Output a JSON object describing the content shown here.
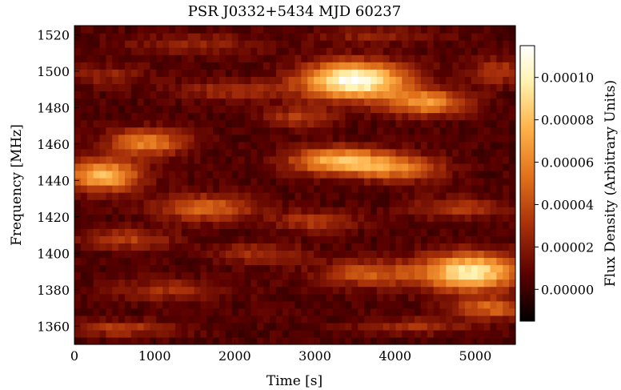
{
  "chart_data": {
    "type": "heatmap",
    "title": "PSR J0332+5434 MJD 60237",
    "xlabel": "Time [s]",
    "ylabel": "Frequency [MHz]",
    "xlim": [
      0,
      5500
    ],
    "ylim": [
      1350,
      1525
    ],
    "xticks": [
      0,
      1000,
      2000,
      3000,
      4000,
      5000
    ],
    "yticks": [
      1360,
      1380,
      1400,
      1420,
      1440,
      1460,
      1480,
      1500,
      1520
    ],
    "colorbar": {
      "label": "Flux Density (Arbitrary Units)",
      "range": [
        -1.5e-05,
        0.000115
      ],
      "ticks": [
        0.0,
        2e-05,
        4e-05,
        6e-05,
        8e-05,
        0.0001
      ],
      "tick_labels": [
        "0.00000",
        "0.00002",
        "0.00004",
        "0.00006",
        "0.00008",
        "0.00010"
      ],
      "colormap": "afmhot",
      "colors": [
        "#000000",
        "#5a0000",
        "#a8300a",
        "#e06f1a",
        "#ffb24a",
        "#fff3b0",
        "#ffffff"
      ]
    },
    "grid": false,
    "scintles": [
      {
        "t": 3500,
        "f": 1495,
        "width_s": 450,
        "height_mhz": 7,
        "flux": 0.00011
      },
      {
        "t": 4950,
        "f": 1390,
        "width_s": 420,
        "height_mhz": 7,
        "flux": 9.5e-05
      },
      {
        "t": 3300,
        "f": 1451,
        "width_s": 420,
        "height_mhz": 5,
        "flux": 7.5e-05
      },
      {
        "t": 350,
        "f": 1443,
        "width_s": 330,
        "height_mhz": 6,
        "flux": 7.5e-05
      },
      {
        "t": 900,
        "f": 1461,
        "width_s": 350,
        "height_mhz": 5,
        "flux": 5.5e-05
      },
      {
        "t": 4050,
        "f": 1447,
        "width_s": 380,
        "height_mhz": 5,
        "flux": 5e-05
      },
      {
        "t": 1650,
        "f": 1425,
        "width_s": 420,
        "height_mhz": 5,
        "flux": 4.5e-05
      },
      {
        "t": 4400,
        "f": 1483,
        "width_s": 350,
        "height_mhz": 5,
        "flux": 6e-05
      },
      {
        "t": 3700,
        "f": 1389,
        "width_s": 450,
        "height_mhz": 5,
        "flux": 4e-05
      },
      {
        "t": 650,
        "f": 1408,
        "width_s": 400,
        "height_mhz": 4,
        "flux": 3e-05
      },
      {
        "t": 600,
        "f": 1359,
        "width_s": 500,
        "height_mhz": 3,
        "flux": 3e-05
      },
      {
        "t": 5200,
        "f": 1370,
        "width_s": 350,
        "height_mhz": 4,
        "flux": 4.5e-05
      },
      {
        "t": 3000,
        "f": 1418,
        "width_s": 350,
        "height_mhz": 4,
        "flux": 3e-05
      },
      {
        "t": 2000,
        "f": 1490,
        "width_s": 500,
        "height_mhz": 4,
        "flux": 2.5e-05
      },
      {
        "t": 4800,
        "f": 1425,
        "width_s": 400,
        "height_mhz": 4,
        "flux": 3e-05
      },
      {
        "t": 1200,
        "f": 1380,
        "width_s": 500,
        "height_mhz": 4,
        "flux": 2.5e-05
      },
      {
        "t": 2800,
        "f": 1475,
        "width_s": 300,
        "height_mhz": 4,
        "flux": 3e-05
      },
      {
        "t": 400,
        "f": 1498,
        "width_s": 350,
        "height_mhz": 4,
        "flux": 2e-05
      },
      {
        "t": 5300,
        "f": 1500,
        "width_s": 250,
        "height_mhz": 5,
        "flux": 3e-05
      },
      {
        "t": 2300,
        "f": 1400,
        "width_s": 400,
        "height_mhz": 4,
        "flux": 2.5e-05
      },
      {
        "t": 4200,
        "f": 1360,
        "width_s": 500,
        "height_mhz": 3,
        "flux": 2.5e-05
      },
      {
        "t": 1500,
        "f": 1515,
        "width_s": 600,
        "height_mhz": 4,
        "flux": 2e-05
      },
      {
        "t": 3800,
        "f": 1520,
        "width_s": 500,
        "height_mhz": 3,
        "flux": 2e-05
      }
    ]
  }
}
